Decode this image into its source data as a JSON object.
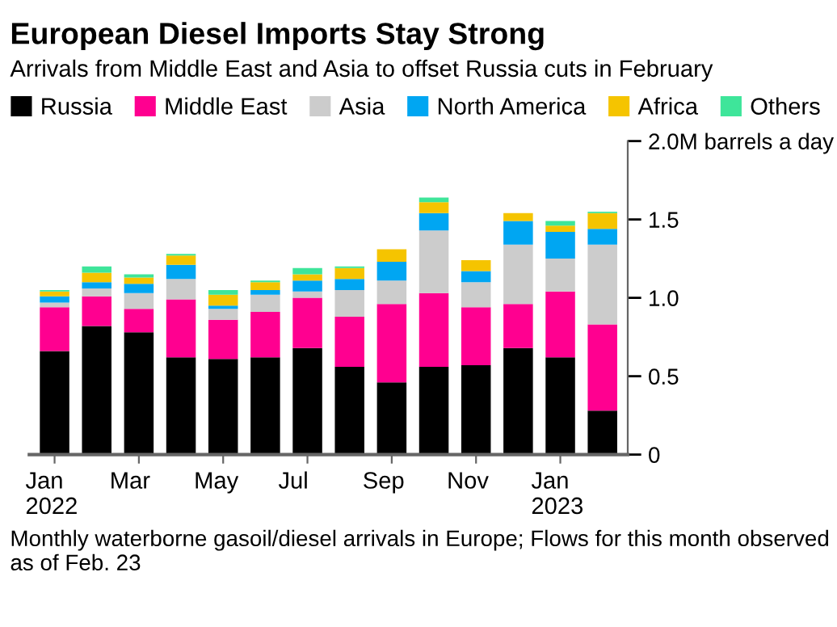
{
  "chart_data": {
    "type": "bar",
    "stacked": true,
    "title": "European Diesel Imports Stay Strong",
    "subtitle": "Arrivals from Middle East and Asia to offset Russia cuts in February",
    "categories": [
      "Jan\n2022",
      null,
      "Mar",
      null,
      "May",
      null,
      "Jul",
      null,
      "Sep",
      null,
      "Nov",
      null,
      "Jan\n2023",
      null
    ],
    "series": [
      {
        "name": "Russia",
        "color": "#000000",
        "values": [
          0.66,
          0.82,
          0.78,
          0.62,
          0.61,
          0.62,
          0.68,
          0.56,
          0.46,
          0.56,
          0.57,
          0.68,
          0.62,
          0.28
        ]
      },
      {
        "name": "Middle East",
        "color": "#ff0090",
        "values": [
          0.28,
          0.19,
          0.15,
          0.37,
          0.25,
          0.29,
          0.32,
          0.32,
          0.5,
          0.47,
          0.37,
          0.28,
          0.42,
          0.55
        ]
      },
      {
        "name": "Asia",
        "color": "#cccccc",
        "values": [
          0.03,
          0.05,
          0.1,
          0.13,
          0.07,
          0.11,
          0.04,
          0.17,
          0.15,
          0.4,
          0.16,
          0.38,
          0.21,
          0.51
        ]
      },
      {
        "name": "North America",
        "color": "#00a6f2",
        "values": [
          0.04,
          0.04,
          0.06,
          0.09,
          0.02,
          0.03,
          0.07,
          0.07,
          0.12,
          0.11,
          0.07,
          0.15,
          0.17,
          0.1
        ]
      },
      {
        "name": "Africa",
        "color": "#f5c400",
        "values": [
          0.03,
          0.06,
          0.04,
          0.06,
          0.07,
          0.05,
          0.04,
          0.07,
          0.08,
          0.07,
          0.07,
          0.05,
          0.04,
          0.1
        ]
      },
      {
        "name": "Others",
        "color": "#3ee59a",
        "values": [
          0.01,
          0.04,
          0.02,
          0.01,
          0.03,
          0.01,
          0.04,
          0.01,
          0,
          0.03,
          0,
          0,
          0.03,
          0.01
        ]
      }
    ],
    "ylim": [
      0,
      2.0
    ],
    "yticks": [
      0,
      0.5,
      {
        "value": 1.0,
        "label": "1.0"
      },
      1.5,
      {
        "value": 2.0,
        "label": "2.0M barrels a day"
      }
    ],
    "legend": "top",
    "grid": false,
    "annotations": [
      "Monthly waterborne gasoil/diesel arrivals in Europe; Flows for this month observed as of Feb. 23"
    ]
  }
}
